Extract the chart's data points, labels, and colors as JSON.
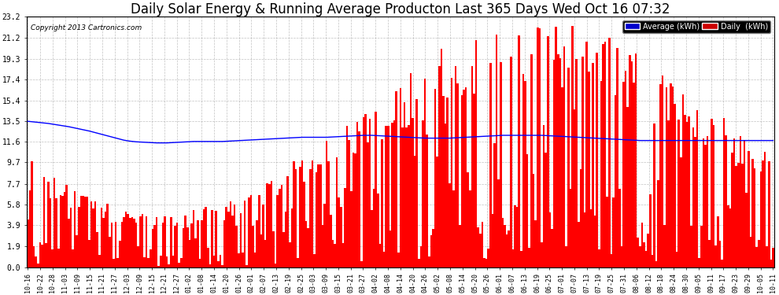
{
  "title": "Daily Solar Energy & Running Average Producton Last 365 Days Wed Oct 16 07:32",
  "copyright": "Copyright 2013 Cartronics.com",
  "yticks": [
    0.0,
    1.9,
    3.9,
    5.8,
    7.7,
    9.7,
    11.6,
    13.5,
    15.4,
    17.4,
    19.3,
    21.2,
    23.2
  ],
  "ymax": 23.2,
  "ymin": 0.0,
  "bar_color": "#ff0000",
  "avg_color": "#0000ff",
  "bg_color": "#ffffff",
  "grid_color": "#999999",
  "title_fontsize": 12,
  "legend_avg_bg": "#0000cc",
  "legend_daily_bg": "#cc0000",
  "xtick_labels": [
    "10-16",
    "10-22",
    "10-28",
    "11-03",
    "11-09",
    "11-15",
    "11-21",
    "11-27",
    "12-03",
    "12-09",
    "12-15",
    "12-21",
    "12-27",
    "01-02",
    "01-08",
    "01-14",
    "01-20",
    "01-26",
    "02-01",
    "02-07",
    "02-13",
    "02-19",
    "02-25",
    "03-03",
    "03-09",
    "03-15",
    "03-21",
    "03-27",
    "04-02",
    "04-08",
    "04-14",
    "04-20",
    "04-26",
    "05-02",
    "05-08",
    "05-14",
    "05-20",
    "05-26",
    "06-01",
    "06-07",
    "06-13",
    "06-19",
    "06-25",
    "07-01",
    "07-07",
    "07-13",
    "07-19",
    "07-25",
    "07-31",
    "08-06",
    "08-12",
    "08-18",
    "08-24",
    "08-30",
    "09-05",
    "09-11",
    "09-17",
    "09-23",
    "09-29",
    "10-05",
    "10-11"
  ],
  "num_bars": 365,
  "seed": 42,
  "avg_line": [
    13.5,
    13.48,
    13.46,
    13.44,
    13.42,
    13.4,
    13.38,
    13.36,
    13.34,
    13.32,
    13.3,
    13.27,
    13.24,
    13.21,
    13.18,
    13.15,
    13.12,
    13.09,
    13.06,
    13.03,
    13.0,
    12.96,
    12.92,
    12.88,
    12.84,
    12.8,
    12.76,
    12.72,
    12.68,
    12.64,
    12.6,
    12.55,
    12.5,
    12.45,
    12.4,
    12.35,
    12.3,
    12.25,
    12.2,
    12.15,
    12.1,
    12.05,
    12.0,
    11.95,
    11.9,
    11.85,
    11.8,
    11.75,
    11.72,
    11.69,
    11.66,
    11.64,
    11.62,
    11.6,
    11.59,
    11.58,
    11.57,
    11.56,
    11.55,
    11.54,
    11.53,
    11.52,
    11.51,
    11.5,
    11.5,
    11.5,
    11.5,
    11.5,
    11.5,
    11.51,
    11.52,
    11.53,
    11.54,
    11.55,
    11.56,
    11.57,
    11.58,
    11.59,
    11.6,
    11.61,
    11.62,
    11.63,
    11.63,
    11.63,
    11.63,
    11.63,
    11.63,
    11.63,
    11.63,
    11.63,
    11.63,
    11.63,
    11.63,
    11.63,
    11.63,
    11.63,
    11.64,
    11.65,
    11.66,
    11.67,
    11.68,
    11.69,
    11.7,
    11.71,
    11.72,
    11.73,
    11.74,
    11.75,
    11.76,
    11.77,
    11.78,
    11.79,
    11.8,
    11.81,
    11.82,
    11.83,
    11.84,
    11.85,
    11.86,
    11.87,
    11.88,
    11.89,
    11.9,
    11.91,
    11.92,
    11.93,
    11.94,
    11.95,
    11.96,
    11.97,
    11.98,
    11.99,
    12.0,
    12.01,
    12.02,
    12.02,
    12.02,
    12.02,
    12.02,
    12.02,
    12.02,
    12.02,
    12.02,
    12.02,
    12.02,
    12.02,
    12.02,
    12.03,
    12.04,
    12.05,
    12.06,
    12.07,
    12.08,
    12.09,
    12.1,
    12.11,
    12.12,
    12.13,
    12.14,
    12.15,
    12.16,
    12.17,
    12.18,
    12.19,
    12.2,
    12.2,
    12.2,
    12.2,
    12.2,
    12.19,
    12.18,
    12.17,
    12.16,
    12.15,
    12.14,
    12.13,
    12.12,
    12.11,
    12.1,
    12.09,
    12.08,
    12.07,
    12.06,
    12.05,
    12.04,
    12.03,
    12.02,
    12.01,
    12.0,
    11.99,
    11.98,
    11.97,
    11.96,
    11.95,
    11.94,
    11.94,
    11.94,
    11.94,
    11.94,
    11.94,
    11.94,
    11.94,
    11.94,
    11.94,
    11.94,
    11.94,
    11.94,
    11.95,
    11.96,
    11.97,
    11.98,
    11.99,
    12.0,
    12.01,
    12.02,
    12.03,
    12.04,
    12.05,
    12.06,
    12.07,
    12.08,
    12.09,
    12.1,
    12.11,
    12.12,
    12.13,
    12.14,
    12.15,
    12.16,
    12.17,
    12.18,
    12.19,
    12.2,
    12.2,
    12.2,
    12.2,
    12.2,
    12.2,
    12.2,
    12.2,
    12.2,
    12.2,
    12.2,
    12.2,
    12.2,
    12.2,
    12.2,
    12.2,
    12.2,
    12.2,
    12.2,
    12.2,
    12.19,
    12.18,
    12.17,
    12.16,
    12.15,
    12.14,
    12.13,
    12.12,
    12.11,
    12.1,
    12.09,
    12.08,
    12.07,
    12.06,
    12.05,
    12.04,
    12.03,
    12.02,
    12.01,
    12.0,
    11.99,
    11.98,
    11.97,
    11.96,
    11.95,
    11.94,
    11.93,
    11.92,
    11.91,
    11.9,
    11.89,
    11.88,
    11.87,
    11.86,
    11.85,
    11.84,
    11.83,
    11.82,
    11.81,
    11.8,
    11.79,
    11.78,
    11.77,
    11.76,
    11.75,
    11.74,
    11.73,
    11.72,
    11.72,
    11.72,
    11.72,
    11.72,
    11.72,
    11.72,
    11.72,
    11.72,
    11.72,
    11.72,
    11.72,
    11.72,
    11.72,
    11.72,
    11.72,
    11.72,
    11.72,
    11.72,
    11.72,
    11.72,
    11.72,
    11.72,
    11.72,
    11.72,
    11.72,
    11.72,
    11.72,
    11.72,
    11.72,
    11.72,
    11.72,
    11.72,
    11.72,
    11.72,
    11.72,
    11.72,
    11.72,
    11.72,
    11.72,
    11.72,
    11.72,
    11.72,
    11.72,
    11.72,
    11.72,
    11.72,
    11.72,
    11.72,
    11.72,
    11.72,
    11.72,
    11.72,
    11.72,
    11.72,
    11.72,
    11.72,
    11.72,
    11.72,
    11.72,
    11.72,
    11.72,
    11.72,
    11.72,
    11.72,
    11.72
  ]
}
